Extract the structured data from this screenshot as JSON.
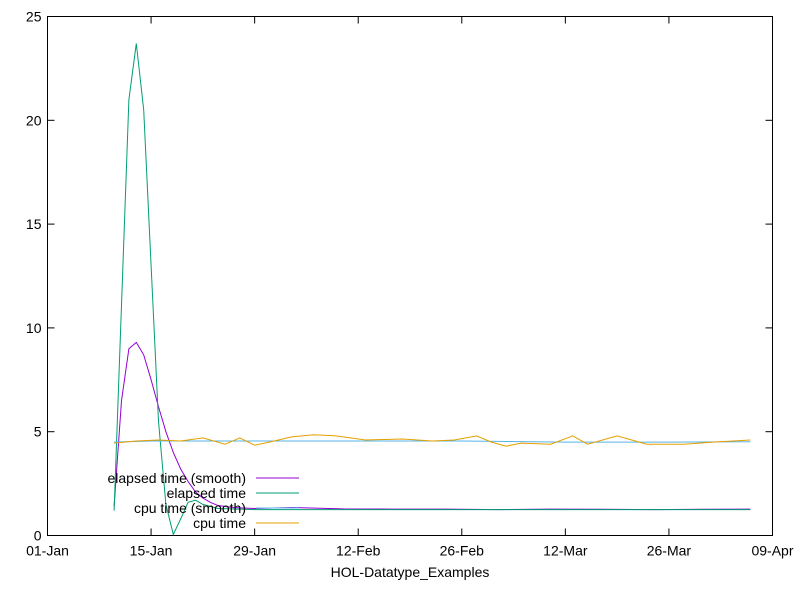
{
  "chart_data": {
    "type": "line",
    "title": "",
    "xlabel": "HOL-Datatype_Examples",
    "ylabel": "",
    "xlim": [
      "2019-01-01",
      "2019-04-09"
    ],
    "ylim": [
      0,
      25
    ],
    "x_tick_labels": [
      "01-Jan",
      "15-Jan",
      "29-Jan",
      "12-Feb",
      "26-Feb",
      "12-Mar",
      "26-Mar",
      "09-Apr"
    ],
    "x_tick_dates": [
      "2019-01-01",
      "2019-01-15",
      "2019-01-29",
      "2019-02-12",
      "2019-02-26",
      "2019-03-12",
      "2019-03-26",
      "2019-04-09"
    ],
    "y_ticks": [
      0,
      5,
      10,
      15,
      20,
      25
    ],
    "grid": false,
    "legend_position": "bottom-left",
    "series": [
      {
        "name": "elapsed time (smooth)",
        "color": "#9400d3",
        "points": [
          [
            "2019-01-10",
            1.4
          ],
          [
            "2019-01-11",
            6.5
          ],
          [
            "2019-01-12",
            9.0
          ],
          [
            "2019-01-13",
            9.3
          ],
          [
            "2019-01-14",
            8.7
          ],
          [
            "2019-01-15",
            7.5
          ],
          [
            "2019-01-16",
            6.2
          ],
          [
            "2019-01-17",
            5.0
          ],
          [
            "2019-01-18",
            4.0
          ],
          [
            "2019-01-19",
            3.2
          ],
          [
            "2019-01-20",
            2.6
          ],
          [
            "2019-01-21",
            2.1
          ],
          [
            "2019-01-22",
            1.8
          ],
          [
            "2019-01-23",
            1.6
          ],
          [
            "2019-01-24",
            1.45
          ],
          [
            "2019-01-26",
            1.35
          ],
          [
            "2019-01-29",
            1.3
          ],
          [
            "2019-02-03",
            1.35
          ],
          [
            "2019-02-10",
            1.28
          ],
          [
            "2019-02-17",
            1.27
          ],
          [
            "2019-02-24",
            1.27
          ],
          [
            "2019-03-03",
            1.25
          ],
          [
            "2019-03-10",
            1.27
          ],
          [
            "2019-03-17",
            1.26
          ],
          [
            "2019-03-24",
            1.25
          ],
          [
            "2019-03-31",
            1.26
          ],
          [
            "2019-04-06",
            1.27
          ]
        ]
      },
      {
        "name": "elapsed time",
        "color": "#009e73",
        "points": [
          [
            "2019-01-10",
            1.2
          ],
          [
            "2019-01-12",
            21.0
          ],
          [
            "2019-01-13",
            23.7
          ],
          [
            "2019-01-14",
            20.5
          ],
          [
            "2019-01-15",
            13.0
          ],
          [
            "2019-01-16",
            5.5
          ],
          [
            "2019-01-17",
            1.5
          ],
          [
            "2019-01-18",
            0.05
          ],
          [
            "2019-01-19",
            0.8
          ],
          [
            "2019-01-20",
            1.6
          ],
          [
            "2019-01-21",
            1.7
          ],
          [
            "2019-01-22",
            1.5
          ],
          [
            "2019-01-24",
            1.3
          ],
          [
            "2019-01-29",
            1.25
          ],
          [
            "2019-02-12",
            1.25
          ],
          [
            "2019-02-26",
            1.25
          ],
          [
            "2019-03-12",
            1.25
          ],
          [
            "2019-03-26",
            1.25
          ],
          [
            "2019-04-06",
            1.25
          ]
        ]
      },
      {
        "name": "cpu time (smooth)",
        "color": "#56b4e9",
        "points": [
          [
            "2019-01-10",
            4.5
          ],
          [
            "2019-01-15",
            4.55
          ],
          [
            "2019-01-22",
            4.55
          ],
          [
            "2019-01-29",
            4.55
          ],
          [
            "2019-02-12",
            4.55
          ],
          [
            "2019-02-26",
            4.55
          ],
          [
            "2019-03-12",
            4.5
          ],
          [
            "2019-03-26",
            4.5
          ],
          [
            "2019-04-06",
            4.52
          ]
        ]
      },
      {
        "name": "cpu time",
        "color": "#e69f00",
        "points": [
          [
            "2019-01-10",
            4.45
          ],
          [
            "2019-01-13",
            4.55
          ],
          [
            "2019-01-16",
            4.6
          ],
          [
            "2019-01-19",
            4.55
          ],
          [
            "2019-01-22",
            4.7
          ],
          [
            "2019-01-25",
            4.4
          ],
          [
            "2019-01-27",
            4.7
          ],
          [
            "2019-01-29",
            4.35
          ],
          [
            "2019-01-31",
            4.5
          ],
          [
            "2019-02-03",
            4.75
          ],
          [
            "2019-02-06",
            4.85
          ],
          [
            "2019-02-09",
            4.8
          ],
          [
            "2019-02-13",
            4.6
          ],
          [
            "2019-02-18",
            4.65
          ],
          [
            "2019-02-22",
            4.55
          ],
          [
            "2019-02-25",
            4.6
          ],
          [
            "2019-02-28",
            4.8
          ],
          [
            "2019-03-02",
            4.5
          ],
          [
            "2019-03-04",
            4.3
          ],
          [
            "2019-03-06",
            4.45
          ],
          [
            "2019-03-10",
            4.4
          ],
          [
            "2019-03-13",
            4.8
          ],
          [
            "2019-03-15",
            4.4
          ],
          [
            "2019-03-19",
            4.8
          ],
          [
            "2019-03-23",
            4.4
          ],
          [
            "2019-03-28",
            4.4
          ],
          [
            "2019-04-01",
            4.5
          ],
          [
            "2019-04-06",
            4.6
          ]
        ]
      }
    ]
  }
}
